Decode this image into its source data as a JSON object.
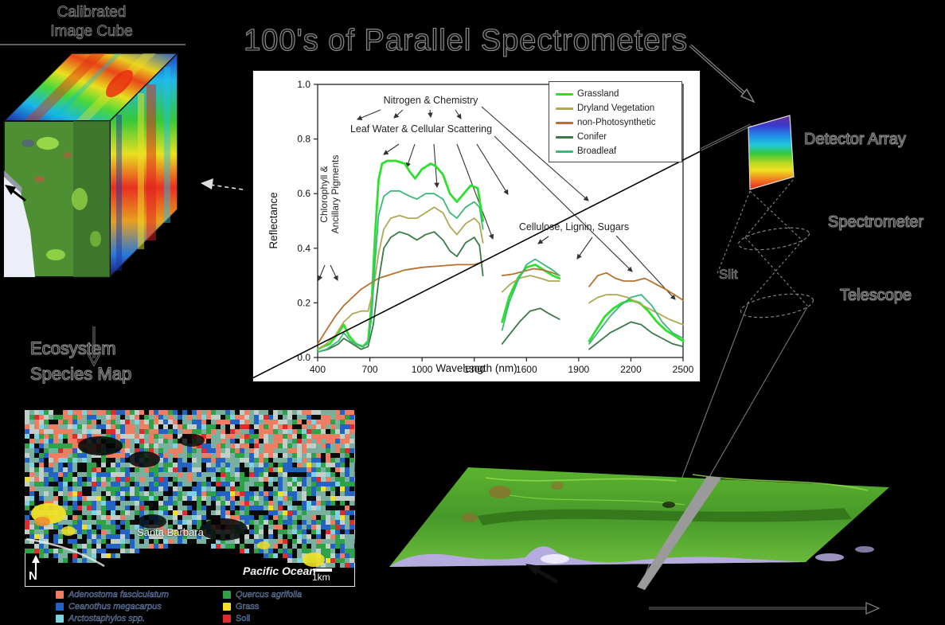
{
  "title": "100's of Parallel Spectrometers",
  "cube": {
    "label_line1": "Calibrated",
    "label_line2": "Image Cube"
  },
  "species_map": {
    "line1": "Ecosystem",
    "line2": "Species Map"
  },
  "instrument": {
    "detector": "Detector Array",
    "spectrometer": "Spectrometer",
    "slit": "Slit",
    "telescope": "Telescope"
  },
  "map": {
    "city": "Santa Barbara",
    "ocean_label": "Pacific Ocean",
    "scale_label": "1km",
    "north_label": "N",
    "legend": [
      {
        "color": "#ef7d62",
        "label": "Adenostoma fasciculatum",
        "italic": true
      },
      {
        "color": "#2263c3",
        "label": "Ceanothus megacarpus",
        "italic": true
      },
      {
        "color": "#7ed3e2",
        "label": "Arctostaphylos spp.",
        "italic": true
      },
      {
        "color": "#2ea149",
        "label": "Quercus agrifolia",
        "italic": true
      },
      {
        "color": "#f2e126",
        "label": "Grass",
        "italic": false
      },
      {
        "color": "#df2b2b",
        "label": "Soil",
        "italic": false
      }
    ]
  },
  "chart_data": {
    "type": "line",
    "title": "",
    "xlabel": "Wavelength (nm)",
    "ylabel": "Reflectance",
    "xlim": [
      400,
      2500
    ],
    "ylim": [
      0,
      1
    ],
    "xticks": [
      400,
      700,
      1000,
      1300,
      1600,
      1900,
      2200,
      2500
    ],
    "yticks": [
      0,
      0.2,
      0.4,
      0.6,
      0.8,
      1
    ],
    "grid": false,
    "legend_position": "top-right",
    "annotations": {
      "nitrogen": "Nitrogen & Chemistry",
      "leaf_water": "Leaf Water & Cellular Scattering",
      "chlorophyll_line1": "Chlorophyll &",
      "chlorophyll_line2": "Ancillary Pigments",
      "cellulose": "Cellulose, Lignin, Sugars"
    },
    "series": [
      {
        "name": "Grassland",
        "color": "#2ee02e",
        "segments": [
          [
            [
              400,
              0.03
            ],
            [
              430,
              0.04
            ],
            [
              470,
              0.05
            ],
            [
              520,
              0.09
            ],
            [
              550,
              0.12
            ],
            [
              580,
              0.08
            ],
            [
              620,
              0.05
            ],
            [
              660,
              0.04
            ],
            [
              690,
              0.06
            ],
            [
              710,
              0.2
            ],
            [
              730,
              0.45
            ],
            [
              750,
              0.65
            ],
            [
              770,
              0.71
            ],
            [
              800,
              0.72
            ],
            [
              850,
              0.72
            ],
            [
              900,
              0.71
            ],
            [
              930,
              0.68
            ],
            [
              960,
              0.655
            ],
            [
              1000,
              0.69
            ],
            [
              1050,
              0.71
            ],
            [
              1080,
              0.7
            ],
            [
              1120,
              0.67
            ],
            [
              1160,
              0.6
            ],
            [
              1200,
              0.57
            ],
            [
              1240,
              0.6
            ],
            [
              1280,
              0.63
            ],
            [
              1320,
              0.62
            ],
            [
              1350,
              0.5
            ]
          ],
          [
            [
              1460,
              0.13
            ],
            [
              1500,
              0.22
            ],
            [
              1550,
              0.29
            ],
            [
              1600,
              0.33
            ],
            [
              1650,
              0.34
            ],
            [
              1700,
              0.32
            ],
            [
              1750,
              0.3
            ],
            [
              1790,
              0.29
            ]
          ],
          [
            [
              1960,
              0.06
            ],
            [
              2000,
              0.1
            ],
            [
              2050,
              0.15
            ],
            [
              2100,
              0.18
            ],
            [
              2150,
              0.2
            ],
            [
              2200,
              0.21
            ],
            [
              2250,
              0.2
            ],
            [
              2300,
              0.17
            ],
            [
              2350,
              0.13
            ],
            [
              2400,
              0.1
            ],
            [
              2450,
              0.08
            ],
            [
              2500,
              0.06
            ]
          ]
        ]
      },
      {
        "name": "Dryland Vegetation",
        "color": "#b0a855",
        "segments": [
          [
            [
              400,
              0.03
            ],
            [
              450,
              0.05
            ],
            [
              500,
              0.08
            ],
            [
              550,
              0.13
            ],
            [
              600,
              0.16
            ],
            [
              650,
              0.17
            ],
            [
              690,
              0.17
            ],
            [
              720,
              0.25
            ],
            [
              750,
              0.38
            ],
            [
              780,
              0.47
            ],
            [
              820,
              0.51
            ],
            [
              870,
              0.52
            ],
            [
              920,
              0.51
            ],
            [
              970,
              0.51
            ],
            [
              1020,
              0.53
            ],
            [
              1070,
              0.55
            ],
            [
              1120,
              0.53
            ],
            [
              1160,
              0.48
            ],
            [
              1200,
              0.45
            ],
            [
              1250,
              0.49
            ],
            [
              1300,
              0.51
            ],
            [
              1330,
              0.49
            ],
            [
              1350,
              0.42
            ]
          ],
          [
            [
              1460,
              0.24
            ],
            [
              1510,
              0.27
            ],
            [
              1560,
              0.29
            ],
            [
              1620,
              0.3
            ],
            [
              1680,
              0.29
            ],
            [
              1730,
              0.28
            ],
            [
              1790,
              0.28
            ]
          ],
          [
            [
              1960,
              0.2
            ],
            [
              2010,
              0.22
            ],
            [
              2060,
              0.23
            ],
            [
              2120,
              0.23
            ],
            [
              2180,
              0.22
            ],
            [
              2240,
              0.2
            ],
            [
              2300,
              0.18
            ],
            [
              2360,
              0.16
            ],
            [
              2420,
              0.14
            ],
            [
              2500,
              0.12
            ]
          ]
        ]
      },
      {
        "name": "non-Photosynthetic",
        "color": "#b5722e",
        "segments": [
          [
            [
              400,
              0.05
            ],
            [
              450,
              0.1
            ],
            [
              500,
              0.15
            ],
            [
              550,
              0.19
            ],
            [
              600,
              0.22
            ],
            [
              650,
              0.25
            ],
            [
              700,
              0.27
            ],
            [
              750,
              0.29
            ],
            [
              800,
              0.3
            ],
            [
              900,
              0.32
            ],
            [
              1000,
              0.33
            ],
            [
              1100,
              0.335
            ],
            [
              1200,
              0.34
            ],
            [
              1300,
              0.34
            ],
            [
              1350,
              0.35
            ]
          ],
          [
            [
              1460,
              0.3
            ],
            [
              1520,
              0.305
            ],
            [
              1580,
              0.315
            ],
            [
              1640,
              0.325
            ],
            [
              1700,
              0.32
            ],
            [
              1750,
              0.31
            ],
            [
              1790,
              0.3
            ]
          ],
          [
            [
              1960,
              0.26
            ],
            [
              2010,
              0.3
            ],
            [
              2060,
              0.31
            ],
            [
              2110,
              0.29
            ],
            [
              2160,
              0.28
            ],
            [
              2220,
              0.28
            ],
            [
              2280,
              0.29
            ],
            [
              2340,
              0.27
            ],
            [
              2400,
              0.25
            ],
            [
              2450,
              0.23
            ],
            [
              2500,
              0.21
            ]
          ]
        ]
      },
      {
        "name": "Conifer",
        "color": "#3a7a45",
        "segments": [
          [
            [
              400,
              0.02
            ],
            [
              460,
              0.03
            ],
            [
              520,
              0.05
            ],
            [
              550,
              0.07
            ],
            [
              600,
              0.05
            ],
            [
              650,
              0.03
            ],
            [
              690,
              0.04
            ],
            [
              720,
              0.12
            ],
            [
              750,
              0.28
            ],
            [
              780,
              0.4
            ],
            [
              820,
              0.44
            ],
            [
              870,
              0.46
            ],
            [
              920,
              0.45
            ],
            [
              970,
              0.43
            ],
            [
              1020,
              0.45
            ],
            [
              1070,
              0.46
            ],
            [
              1120,
              0.43
            ],
            [
              1160,
              0.39
            ],
            [
              1200,
              0.37
            ],
            [
              1250,
              0.42
            ],
            [
              1300,
              0.44
            ],
            [
              1330,
              0.41
            ],
            [
              1350,
              0.3
            ]
          ],
          [
            [
              1460,
              0.05
            ],
            [
              1510,
              0.09
            ],
            [
              1560,
              0.13
            ],
            [
              1620,
              0.17
            ],
            [
              1680,
              0.18
            ],
            [
              1730,
              0.16
            ],
            [
              1790,
              0.14
            ]
          ],
          [
            [
              1960,
              0.03
            ],
            [
              2020,
              0.06
            ],
            [
              2080,
              0.09
            ],
            [
              2140,
              0.11
            ],
            [
              2200,
              0.13
            ],
            [
              2260,
              0.12
            ],
            [
              2320,
              0.09
            ],
            [
              2380,
              0.07
            ],
            [
              2440,
              0.05
            ],
            [
              2500,
              0.04
            ]
          ]
        ]
      },
      {
        "name": "Broadleaf",
        "color": "#3cb878",
        "segments": [
          [
            [
              400,
              0.02
            ],
            [
              450,
              0.03
            ],
            [
              520,
              0.06
            ],
            [
              550,
              0.09
            ],
            [
              590,
              0.06
            ],
            [
              650,
              0.04
            ],
            [
              690,
              0.05
            ],
            [
              710,
              0.15
            ],
            [
              730,
              0.35
            ],
            [
              750,
              0.52
            ],
            [
              780,
              0.59
            ],
            [
              820,
              0.61
            ],
            [
              870,
              0.61
            ],
            [
              930,
              0.59
            ],
            [
              970,
              0.58
            ],
            [
              1020,
              0.6
            ],
            [
              1070,
              0.6
            ],
            [
              1120,
              0.58
            ],
            [
              1160,
              0.53
            ],
            [
              1200,
              0.51
            ],
            [
              1250,
              0.55
            ],
            [
              1300,
              0.57
            ],
            [
              1330,
              0.55
            ],
            [
              1350,
              0.47
            ]
          ],
          [
            [
              1460,
              0.1
            ],
            [
              1500,
              0.2
            ],
            [
              1550,
              0.28
            ],
            [
              1600,
              0.34
            ],
            [
              1650,
              0.36
            ],
            [
              1700,
              0.34
            ],
            [
              1750,
              0.32
            ],
            [
              1790,
              0.3
            ]
          ],
          [
            [
              1960,
              0.05
            ],
            [
              2020,
              0.1
            ],
            [
              2080,
              0.15
            ],
            [
              2140,
              0.19
            ],
            [
              2200,
              0.22
            ],
            [
              2260,
              0.23
            ],
            [
              2320,
              0.19
            ],
            [
              2380,
              0.13
            ],
            [
              2440,
              0.09
            ],
            [
              2500,
              0.07
            ]
          ]
        ]
      }
    ]
  }
}
